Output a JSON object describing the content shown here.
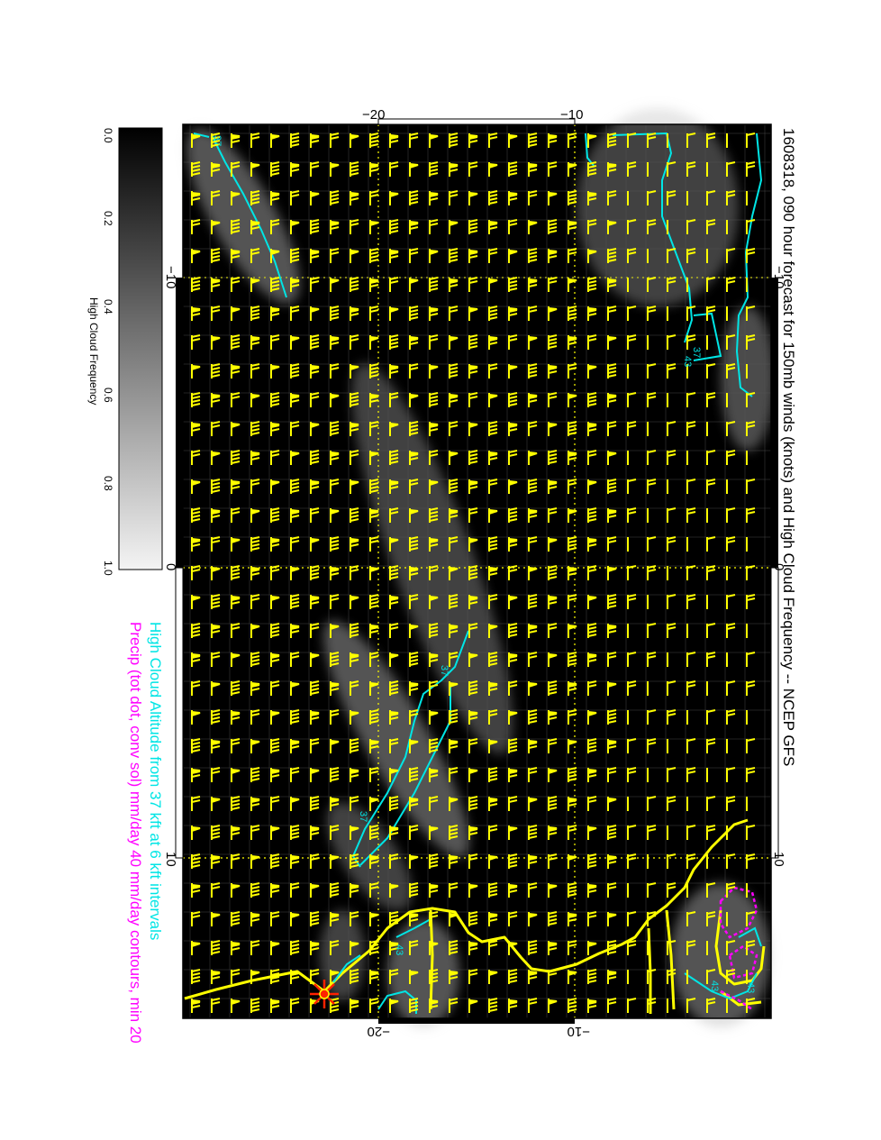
{
  "title": "1608318, 090 hour forecast for 150mb winds (knots) and High Cloud Frequency -- NCEP GFS",
  "subtitle_cyan": "High Cloud Altitude from 37 kft at 6 kft intervals",
  "subtitle_magenta": "Precip (tot dot, conv sol) mm/day 40 mm/day contours, min 20",
  "colors": {
    "background": "#000000",
    "barb": "#ffff00",
    "coast": "#ffff00",
    "cloud_contour": "#00e5e5",
    "precip": "#ff00ff",
    "storm": "#ff2200",
    "grid": "#ffff00",
    "title_cyan": "#00e5e5",
    "title_magenta": "#ff00ff"
  },
  "axes": {
    "top_ticks": [
      "−20",
      "−10"
    ],
    "bottom_ticks": [
      "−20",
      "−10"
    ],
    "left_ticks": [
      "−10",
      "0",
      "10"
    ],
    "right_ticks": [
      "−10",
      "0",
      "10"
    ]
  },
  "colorbar": {
    "label": "High Cloud Frequency",
    "ticks": [
      "0.0",
      "0.2",
      "0.4",
      "0.6",
      "0.8",
      "1.0"
    ],
    "range": [
      0.0,
      1.0
    ]
  },
  "contour_labels": [
    "37",
    "37",
    "43",
    "37",
    "43",
    "43",
    "37",
    "43"
  ],
  "storm_marker": "tropical-cyclone-symbol"
}
